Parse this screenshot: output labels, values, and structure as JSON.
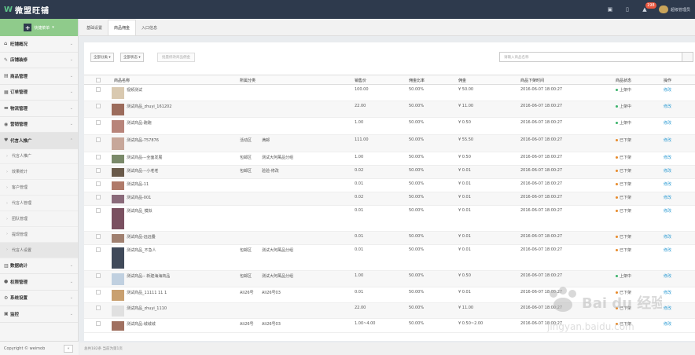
{
  "app": {
    "logo_text": "微盟旺铺",
    "user_name": "超级管理员",
    "notification_count": "198"
  },
  "sidebar": {
    "quick_label": "快捷菜单",
    "items": [
      {
        "label": "旺铺概况",
        "icon": "home-icon"
      },
      {
        "label": "店铺装修",
        "icon": "brush-icon"
      },
      {
        "label": "商品管理",
        "icon": "box-icon"
      },
      {
        "label": "订单管理",
        "icon": "order-icon"
      },
      {
        "label": "物流管理",
        "icon": "truck-icon"
      },
      {
        "label": "营销管理",
        "icon": "marketing-icon"
      },
      {
        "label": "代言人推广",
        "icon": "heart-icon"
      }
    ],
    "subitems": [
      "代言人推广",
      "效果统计",
      "客户管理",
      "代言人管理",
      "团队管理",
      "提现管理",
      "代言人设置"
    ],
    "items2": [
      {
        "label": "数据统计",
        "icon": "chart-icon"
      },
      {
        "label": "权限管理",
        "icon": "user-icon"
      },
      {
        "label": "系统设置",
        "icon": "gear-icon"
      },
      {
        "label": "监控",
        "icon": "monitor-icon"
      }
    ],
    "copyright": "Copyright © weimob"
  },
  "tabs": [
    "基础设置",
    "商品佣金",
    "入口信息"
  ],
  "toolbar": {
    "category": "全部分类",
    "status": "全部状态",
    "batch": "批量修改商品佣金",
    "search_placeholder": "请输入商品名称"
  },
  "table": {
    "headers": [
      "商品名称",
      "所属分类",
      "销售价",
      "佣金比率",
      "佣金",
      "商品下架时间",
      "商品状态",
      "操作"
    ],
    "rows": [
      {
        "name": "视频测试",
        "cat1": "",
        "cat2": "",
        "price": "100.00",
        "rate": "50.00%",
        "comm": "¥ 50.00",
        "time": "2016-06-07 18:00:27",
        "status": "上架中",
        "op": "修改",
        "h": 21
      },
      {
        "name": "测试商品_zhuyi_161202",
        "cat1": "",
        "cat2": "",
        "price": "22.00",
        "rate": "50.00%",
        "comm": "¥ 11.00",
        "time": "2016-06-07 18:00:27",
        "status": "上架中",
        "op": "修改",
        "h": 21
      },
      {
        "name": "测试商品-跑跑",
        "cat1": "",
        "cat2": "",
        "price": "1.00",
        "rate": "50.00%",
        "comm": "¥ 0.50",
        "time": "2016-06-07 18:00:27",
        "status": "上架中",
        "op": "修改",
        "h": 22
      },
      {
        "name": "测试商品-757876",
        "cat1": "活动区",
        "cat2": "满邮",
        "price": "111.00",
        "rate": "50.00%",
        "comm": "¥ 55.50",
        "time": "2016-06-07 18:00:27",
        "status": "已下架",
        "op": "修改",
        "h": 22
      },
      {
        "name": "测试商品---全面发展",
        "cat1": "包邮区",
        "cat2": "测试大阿萬品分组",
        "price": "1.00",
        "rate": "50.00%",
        "comm": "¥ 0.50",
        "time": "2016-06-07 18:00:27",
        "status": "已下架",
        "op": "修改",
        "h": 17
      },
      {
        "name": "测试商品---小老老",
        "cat1": "包邮区",
        "cat2": "验验-修改",
        "price": "0.02",
        "rate": "50.00%",
        "comm": "¥ 0.01",
        "time": "2016-06-07 18:00:27",
        "status": "已下架",
        "op": "修改",
        "h": 17
      },
      {
        "name": "测试商品-11",
        "cat1": "",
        "cat2": "",
        "price": "0.01",
        "rate": "50.00%",
        "comm": "¥ 0.01",
        "time": "2016-06-07 18:00:27",
        "status": "已下架",
        "op": "修改",
        "h": 17
      },
      {
        "name": "测试商品-001",
        "cat1": "",
        "cat2": "",
        "price": "0.02",
        "rate": "50.00%",
        "comm": "¥ 0.01",
        "time": "2016-06-07 18:00:27",
        "status": "已下架",
        "op": "修改",
        "h": 17
      },
      {
        "name": "测试商品_模拟",
        "cat1": "",
        "cat2": "",
        "price": "0.01",
        "rate": "50.00%",
        "comm": "¥ 0.01",
        "time": "2016-06-07 18:00:27",
        "status": "已下架",
        "op": "修改",
        "h": 33
      },
      {
        "name": "测试商品-远远叠",
        "cat1": "",
        "cat2": "",
        "price": "0.01",
        "rate": "50.00%",
        "comm": "¥ 0.01",
        "time": "2016-06-07 18:00:27",
        "status": "已下架",
        "op": "修改",
        "h": 17
      },
      {
        "name": "测试商品_不急人",
        "cat1": "包邮区",
        "cat2": "测试大阿萬品分组",
        "price": "0.01",
        "rate": "50.00%",
        "comm": "¥ 0.01",
        "time": "2016-06-07 18:00:27",
        "status": "已下架",
        "op": "修改",
        "h": 33
      },
      {
        "name": "测试商品-- 新建海海商品",
        "cat1": "包邮区",
        "cat2": "测试大阿萬品分组",
        "price": "1.00",
        "rate": "50.00%",
        "comm": "¥ 0.50",
        "time": "2016-06-07 18:00:27",
        "status": "上架中",
        "op": "修改",
        "h": 21
      },
      {
        "name": "测试商品_11111 11 1",
        "cat1": "Ali26号",
        "cat2": "Ali26号03",
        "price": "0.01",
        "rate": "50.00%",
        "comm": "¥ 0.01",
        "time": "2016-06-07 18:00:27",
        "status": "已下架",
        "op": "修改",
        "h": 20
      },
      {
        "name": "测试商品_zhuyi_1110",
        "cat1": "",
        "cat2": "",
        "price": "22.00",
        "rate": "50.00%",
        "comm": "¥ 11.00",
        "time": "2016-06-07 18:00:27",
        "status": "已下架",
        "op": "修改",
        "h": 20
      },
      {
        "name": "测试商品-城城城",
        "cat1": "Ali26号",
        "cat2": "Ali26号03",
        "price": "1.00~4.00",
        "rate": "50.00%",
        "comm": "¥ 0.50~2.00",
        "time": "2016-06-07 18:00:27",
        "status": "已下架",
        "op": "修改",
        "h": 18
      }
    ]
  },
  "footer": "总共182条 当前为第1页",
  "colors": {
    "top": "#2e3a4d",
    "green": "#8fcb8b",
    "on_dot": "#3bb36b",
    "off_dot": "#e88a2a",
    "link": "#2b9bd3"
  },
  "watermark": {
    "brand": "Bai du 经验",
    "url": "jingyan.baidu.com"
  }
}
